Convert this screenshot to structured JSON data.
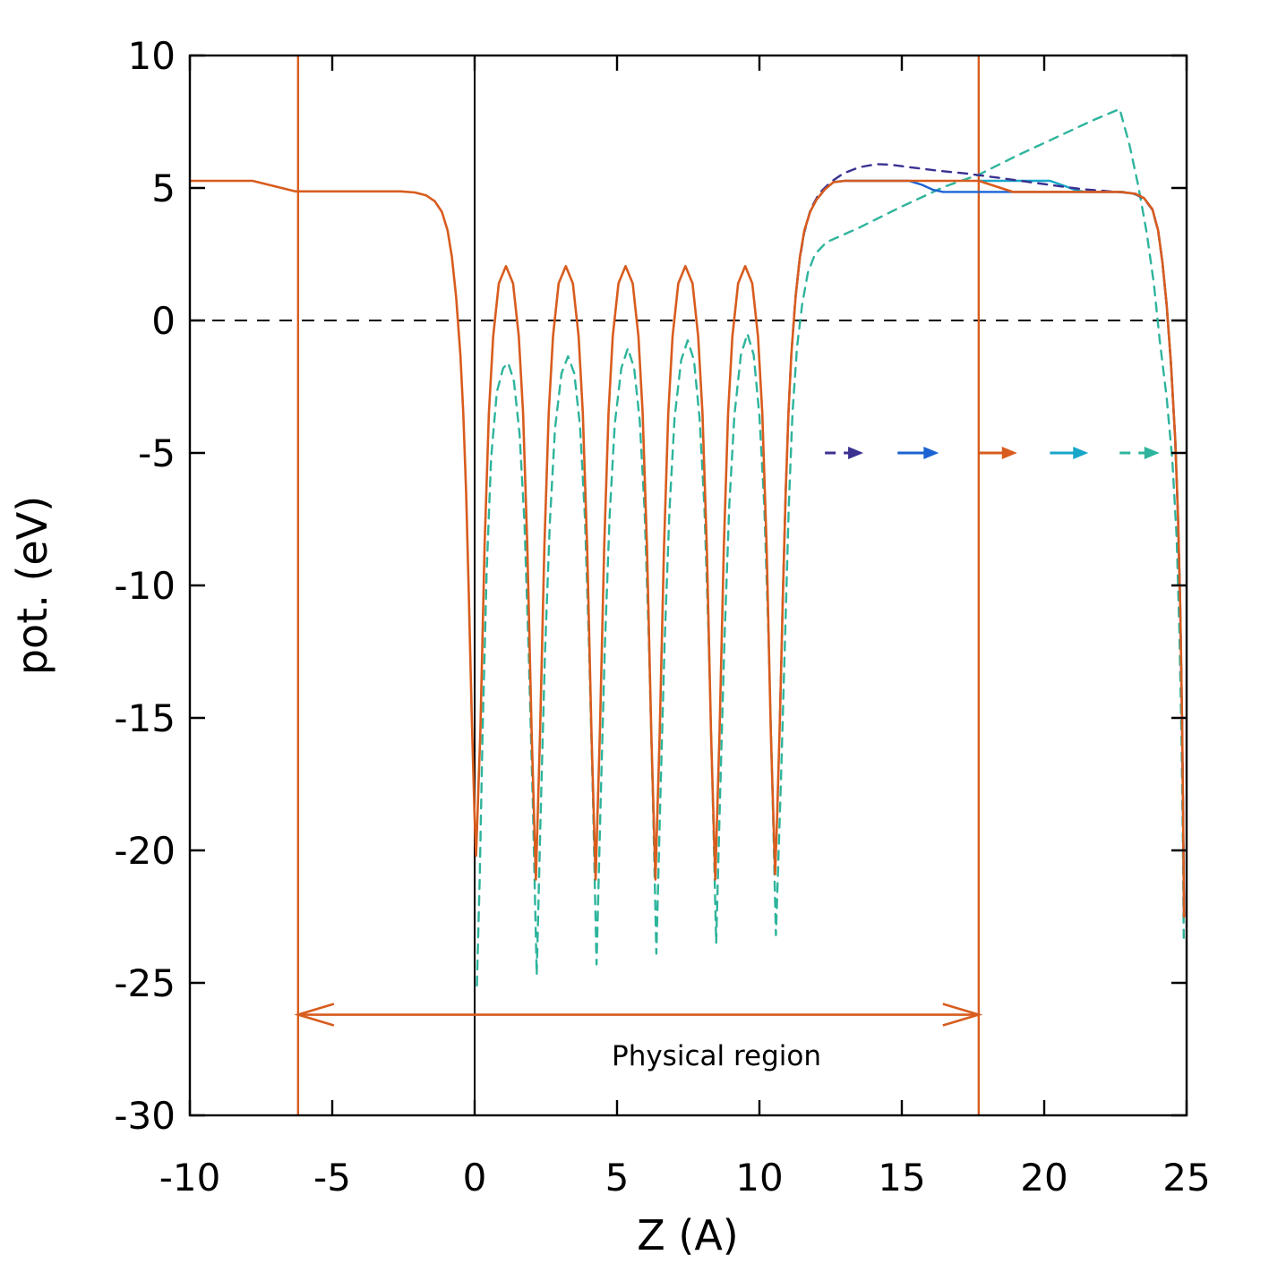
{
  "figure": {
    "xlabel": "Z (A)",
    "ylabel": "pot. (eV)",
    "annotation": "Physical region"
  },
  "colors": {
    "orange": "#d85c1e",
    "navy": "#3a3191",
    "blue": "#1b62d2",
    "cyan": "#18a6c9",
    "teal": "#2eb49c",
    "black": "#000000"
  },
  "chart_data": {
    "type": "line",
    "title": "",
    "xlabel": "Z (A)",
    "ylabel": "pot. (eV)",
    "xlim": [
      -10,
      25
    ],
    "ylim": [
      -30,
      10
    ],
    "xticks": [
      -10,
      -5,
      0,
      5,
      10,
      15,
      20,
      25
    ],
    "yticks": [
      10,
      5,
      0,
      -5,
      -10,
      -15,
      -20,
      -25,
      -30
    ],
    "grid": false,
    "legend_position": "none",
    "reference_lines": [
      {
        "name": "zero-level",
        "axis": "y",
        "value": 0,
        "color": "#000000",
        "style": "dashed",
        "width": 2
      },
      {
        "name": "cell-origin",
        "axis": "x",
        "value": 0,
        "color": "#000000",
        "style": "solid",
        "width": 2
      },
      {
        "name": "physical-region-left-boundary",
        "axis": "x",
        "value": -6.2,
        "color": "#d85c1e",
        "style": "solid",
        "width": 2.4
      },
      {
        "name": "physical-region-right-boundary",
        "axis": "x",
        "value": 17.7,
        "color": "#d85c1e",
        "style": "solid",
        "width": 2.4
      }
    ],
    "region_annotation": {
      "label": "Physical region",
      "x_from": -6.2,
      "x_to": 17.7,
      "arrow_y": -26.2,
      "label_x": 8.5,
      "label_y": -28.1,
      "color": "#d85c1e"
    },
    "shift_arrows": [
      {
        "series": "potential-navy-dashed",
        "color": "#3a3191",
        "style": "dashed",
        "x1": 12.3,
        "x2": 13.65,
        "y": -5
      },
      {
        "series": "potential-blue-solid",
        "color": "#1b62d2",
        "style": "solid",
        "x1": 14.85,
        "x2": 16.3,
        "y": -5
      },
      {
        "series": "potential-orange-solid",
        "color": "#d85c1e",
        "style": "solid",
        "x1": 17.72,
        "x2": 19.05,
        "y": -5
      },
      {
        "series": "potential-cyan-solid",
        "color": "#18a6c9",
        "style": "solid",
        "x1": 20.2,
        "x2": 21.55,
        "y": -5
      },
      {
        "series": "potential-teal-dashed",
        "color": "#2eb49c",
        "style": "dashed",
        "x1": 22.65,
        "x2": 24.05,
        "y": -5
      }
    ],
    "series": [
      {
        "name": "potential-teal-dashed",
        "color": "#2eb49c",
        "style": "dashed",
        "width": 2.4,
        "points": [
          [
            0.08,
            -25.1
          ],
          [
            0.18,
            -21
          ],
          [
            0.28,
            -15.5
          ],
          [
            0.42,
            -9.5
          ],
          [
            0.58,
            -5.2
          ],
          [
            0.78,
            -2.7
          ],
          [
            1.0,
            -1.8
          ],
          [
            1.18,
            -1.6
          ],
          [
            1.38,
            -2.3
          ],
          [
            1.58,
            -4.3
          ],
          [
            1.75,
            -7.6
          ],
          [
            1.9,
            -12.6
          ],
          [
            2.05,
            -18.5
          ],
          [
            2.18,
            -24.7
          ],
          [
            2.32,
            -18.5
          ],
          [
            2.47,
            -12.6
          ],
          [
            2.64,
            -7.6
          ],
          [
            2.82,
            -4.1
          ],
          [
            3.05,
            -2.0
          ],
          [
            3.28,
            -1.35
          ],
          [
            3.5,
            -2.0
          ],
          [
            3.7,
            -4.0
          ],
          [
            3.87,
            -7.4
          ],
          [
            4.02,
            -12.4
          ],
          [
            4.16,
            -18.3
          ],
          [
            4.28,
            -24.3
          ],
          [
            4.42,
            -18.3
          ],
          [
            4.57,
            -12.4
          ],
          [
            4.74,
            -7.4
          ],
          [
            4.92,
            -3.9
          ],
          [
            5.15,
            -1.8
          ],
          [
            5.38,
            -1.05
          ],
          [
            5.6,
            -1.8
          ],
          [
            5.8,
            -3.8
          ],
          [
            5.97,
            -7.2
          ],
          [
            6.12,
            -12.2
          ],
          [
            6.26,
            -18.1
          ],
          [
            6.38,
            -23.9
          ],
          [
            6.52,
            -18.1
          ],
          [
            6.67,
            -12.2
          ],
          [
            6.84,
            -7.2
          ],
          [
            7.02,
            -3.7
          ],
          [
            7.25,
            -1.5
          ],
          [
            7.48,
            -0.75
          ],
          [
            7.7,
            -1.5
          ],
          [
            7.9,
            -3.7
          ],
          [
            8.07,
            -7.1
          ],
          [
            8.22,
            -12.1
          ],
          [
            8.36,
            -17.9
          ],
          [
            8.48,
            -23.5
          ],
          [
            8.62,
            -17.9
          ],
          [
            8.77,
            -12.1
          ],
          [
            8.94,
            -7.0
          ],
          [
            9.12,
            -3.6
          ],
          [
            9.35,
            -1.3
          ],
          [
            9.58,
            -0.5
          ],
          [
            9.8,
            -1.3
          ],
          [
            10.0,
            -3.6
          ],
          [
            10.17,
            -7.0
          ],
          [
            10.32,
            -12.0
          ],
          [
            10.46,
            -17.8
          ],
          [
            10.58,
            -23.2
          ],
          [
            10.75,
            -17.5
          ],
          [
            10.9,
            -12
          ],
          [
            11.03,
            -7
          ],
          [
            11.16,
            -3.5
          ],
          [
            11.32,
            -1.0
          ],
          [
            11.5,
            0.6
          ],
          [
            11.7,
            1.8
          ],
          [
            11.95,
            2.5
          ],
          [
            12.35,
            2.95
          ],
          [
            13.5,
            3.5
          ],
          [
            15.0,
            4.3
          ],
          [
            16.5,
            5.05
          ],
          [
            17.7,
            5.5
          ],
          [
            19.0,
            6.2
          ],
          [
            20.5,
            6.95
          ],
          [
            21.7,
            7.55
          ],
          [
            22.65,
            7.98
          ],
          [
            23.0,
            6.6
          ],
          [
            23.3,
            5.1
          ],
          [
            23.6,
            3.3
          ],
          [
            23.85,
            1.4
          ],
          [
            24.05,
            -0.7
          ],
          [
            24.3,
            -2.9
          ],
          [
            24.5,
            -5.3
          ],
          [
            24.65,
            -8.2
          ],
          [
            24.75,
            -11.8
          ],
          [
            24.82,
            -15.8
          ],
          [
            24.87,
            -19.8
          ],
          [
            24.9,
            -23.3
          ]
        ]
      },
      {
        "name": "potential-cyan-solid",
        "color": "#18a6c9",
        "style": "solid",
        "width": 2.4,
        "points": [
          [
            17.72,
            5.27
          ],
          [
            20.2,
            5.27
          ],
          [
            20.65,
            5.1
          ],
          [
            21.1,
            4.92
          ],
          [
            21.45,
            4.85
          ],
          [
            22.8,
            4.85
          ]
        ]
      },
      {
        "name": "potential-navy-dashed",
        "color": "#3a3191",
        "style": "dashed",
        "width": 2.4,
        "points": [
          [
            10.72,
            -15
          ],
          [
            10.82,
            -10.5
          ],
          [
            10.92,
            -6.5
          ],
          [
            11.02,
            -3.5
          ],
          [
            11.12,
            -1.3
          ],
          [
            11.25,
            0.7
          ],
          [
            11.4,
            2.2
          ],
          [
            11.57,
            3.3
          ],
          [
            11.8,
            4.2
          ],
          [
            12.1,
            4.8
          ],
          [
            12.5,
            5.22
          ],
          [
            12.95,
            5.55
          ],
          [
            13.5,
            5.78
          ],
          [
            14.1,
            5.9
          ],
          [
            14.6,
            5.88
          ],
          [
            15.3,
            5.78
          ],
          [
            16.3,
            5.65
          ],
          [
            17.3,
            5.54
          ],
          [
            18.3,
            5.4
          ],
          [
            19.3,
            5.25
          ],
          [
            20.3,
            5.1
          ],
          [
            21.3,
            4.96
          ],
          [
            22.3,
            4.87
          ],
          [
            22.8,
            4.83
          ],
          [
            23.2,
            4.76
          ],
          [
            23.5,
            4.6
          ],
          [
            23.8,
            4.18
          ],
          [
            24.0,
            3.38
          ],
          [
            24.15,
            2.18
          ],
          [
            24.3,
            0.58
          ],
          [
            24.45,
            -1.62
          ],
          [
            24.6,
            -4.52
          ],
          [
            24.7,
            -7.52
          ],
          [
            24.78,
            -11
          ],
          [
            24.84,
            -15
          ],
          [
            24.88,
            -19
          ],
          [
            24.91,
            -22.5
          ]
        ]
      },
      {
        "name": "potential-blue-solid",
        "color": "#1b62d2",
        "style": "solid",
        "width": 2.4,
        "points": [
          [
            11.27,
            0.9
          ],
          [
            11.42,
            2.4
          ],
          [
            11.58,
            3.4
          ],
          [
            11.78,
            4.1
          ],
          [
            12.0,
            4.55
          ],
          [
            12.3,
            4.95
          ],
          [
            12.6,
            5.22
          ],
          [
            13.0,
            5.27
          ],
          [
            15.25,
            5.27
          ],
          [
            15.7,
            5.12
          ],
          [
            16.1,
            4.93
          ],
          [
            16.45,
            4.85
          ],
          [
            22.7,
            4.85
          ],
          [
            23.2,
            4.78
          ],
          [
            23.5,
            4.62
          ],
          [
            23.8,
            4.2
          ],
          [
            24.0,
            3.4
          ],
          [
            24.15,
            2.2
          ],
          [
            24.3,
            0.6
          ],
          [
            24.45,
            -1.6
          ],
          [
            24.6,
            -4.5
          ],
          [
            24.7,
            -7.5
          ],
          [
            24.78,
            -11
          ],
          [
            24.84,
            -15
          ],
          [
            24.88,
            -19
          ],
          [
            24.91,
            -22.5
          ]
        ]
      },
      {
        "name": "potential-orange-solid",
        "color": "#d85c1e",
        "style": "solid",
        "width": 2.6,
        "points": [
          [
            -10,
            5.27
          ],
          [
            -7.8,
            5.27
          ],
          [
            -6.3,
            4.87
          ],
          [
            -2.6,
            4.87
          ],
          [
            -2.1,
            4.83
          ],
          [
            -1.7,
            4.72
          ],
          [
            -1.4,
            4.5
          ],
          [
            -1.15,
            4.1
          ],
          [
            -0.95,
            3.4
          ],
          [
            -0.8,
            2.4
          ],
          [
            -0.65,
            0.9
          ],
          [
            -0.5,
            -1.3
          ],
          [
            -0.4,
            -3.5
          ],
          [
            -0.3,
            -6.5
          ],
          [
            -0.2,
            -10.5
          ],
          [
            -0.1,
            -15
          ],
          [
            0.0,
            -18.8
          ],
          [
            0.05,
            -20.2
          ],
          [
            0.2,
            -15.5
          ],
          [
            0.35,
            -8.5
          ],
          [
            0.5,
            -3.5
          ],
          [
            0.65,
            -0.6
          ],
          [
            0.85,
            1.4
          ],
          [
            1.1,
            2.05
          ],
          [
            1.35,
            1.4
          ],
          [
            1.55,
            -0.6
          ],
          [
            1.7,
            -3.5
          ],
          [
            1.85,
            -8.5
          ],
          [
            2.0,
            -15.5
          ],
          [
            2.15,
            -21.1
          ],
          [
            2.3,
            -15.5
          ],
          [
            2.45,
            -8.5
          ],
          [
            2.6,
            -3.5
          ],
          [
            2.75,
            -0.6
          ],
          [
            2.95,
            1.4
          ],
          [
            3.2,
            2.05
          ],
          [
            3.45,
            1.4
          ],
          [
            3.65,
            -0.6
          ],
          [
            3.8,
            -3.5
          ],
          [
            3.95,
            -8.5
          ],
          [
            4.1,
            -15.5
          ],
          [
            4.25,
            -21.1
          ],
          [
            4.4,
            -15.5
          ],
          [
            4.55,
            -8.5
          ],
          [
            4.7,
            -3.5
          ],
          [
            4.85,
            -0.6
          ],
          [
            5.05,
            1.4
          ],
          [
            5.3,
            2.05
          ],
          [
            5.55,
            1.4
          ],
          [
            5.75,
            -0.6
          ],
          [
            5.9,
            -3.5
          ],
          [
            6.05,
            -8.5
          ],
          [
            6.2,
            -15.5
          ],
          [
            6.35,
            -21.1
          ],
          [
            6.5,
            -15.5
          ],
          [
            6.65,
            -8.5
          ],
          [
            6.8,
            -3.5
          ],
          [
            6.95,
            -0.6
          ],
          [
            7.15,
            1.4
          ],
          [
            7.4,
            2.05
          ],
          [
            7.65,
            1.4
          ],
          [
            7.85,
            -0.6
          ],
          [
            8.0,
            -3.5
          ],
          [
            8.15,
            -8.5
          ],
          [
            8.3,
            -15.5
          ],
          [
            8.45,
            -21.1
          ],
          [
            8.6,
            -15.5
          ],
          [
            8.75,
            -8.5
          ],
          [
            8.9,
            -3.5
          ],
          [
            9.05,
            -0.6
          ],
          [
            9.25,
            1.4
          ],
          [
            9.5,
            2.05
          ],
          [
            9.75,
            1.4
          ],
          [
            9.95,
            -0.6
          ],
          [
            10.1,
            -3.5
          ],
          [
            10.25,
            -8.5
          ],
          [
            10.4,
            -15.5
          ],
          [
            10.55,
            -20.9
          ],
          [
            10.62,
            -18.8
          ],
          [
            10.72,
            -15
          ],
          [
            10.82,
            -10.5
          ],
          [
            10.92,
            -6.5
          ],
          [
            11.02,
            -3.5
          ],
          [
            11.12,
            -1.3
          ],
          [
            11.27,
            0.9
          ],
          [
            11.42,
            2.4
          ],
          [
            11.58,
            3.4
          ],
          [
            11.78,
            4.1
          ],
          [
            12.0,
            4.55
          ],
          [
            12.3,
            4.95
          ],
          [
            12.6,
            5.22
          ],
          [
            13.0,
            5.27
          ],
          [
            17.7,
            5.27
          ],
          [
            18.9,
            4.85
          ],
          [
            22.7,
            4.85
          ],
          [
            23.2,
            4.78
          ],
          [
            23.5,
            4.62
          ],
          [
            23.8,
            4.2
          ],
          [
            24.0,
            3.4
          ],
          [
            24.15,
            2.2
          ],
          [
            24.3,
            0.6
          ],
          [
            24.45,
            -1.6
          ],
          [
            24.6,
            -4.5
          ],
          [
            24.7,
            -7.5
          ],
          [
            24.78,
            -11
          ],
          [
            24.84,
            -15
          ],
          [
            24.88,
            -19
          ],
          [
            24.91,
            -22.5
          ]
        ]
      }
    ]
  }
}
